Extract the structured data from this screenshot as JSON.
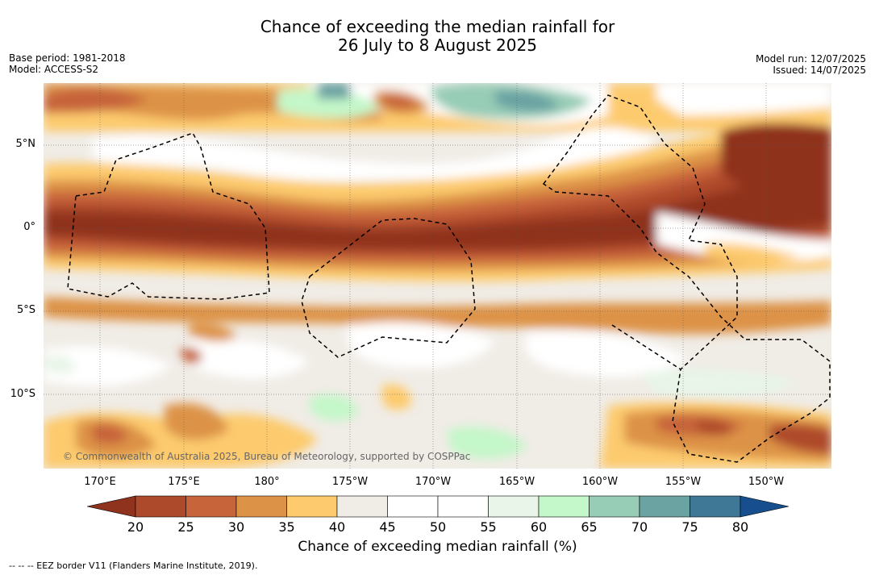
{
  "header": {
    "title_line1": "Chance of exceeding the median rainfall for",
    "title_line2": "26 July to 8 August 2025",
    "base_period": "Base period: 1981-2018",
    "model": "Model: ACCESS-S2",
    "model_run": "Model run: 12/07/2025",
    "issued": "Issued: 14/07/2025"
  },
  "map": {
    "lat_labels": [
      "5°N",
      "0°",
      "5°S",
      "10°S"
    ],
    "lon_labels": [
      "170°E",
      "175°E",
      "180°",
      "175°W",
      "170°W",
      "165°W",
      "160°W",
      "155°W",
      "150°W"
    ],
    "copyright": "© Commonwealth of Australia 2025, Bureau of Meteorology, supported by COSPPac"
  },
  "colorbar": {
    "ticks": [
      "20",
      "25",
      "30",
      "35",
      "40",
      "45",
      "50",
      "55",
      "60",
      "65",
      "70",
      "75",
      "80"
    ],
    "colors": [
      "#8f321e",
      "#ae4a2c",
      "#c7643a",
      "#dd9347",
      "#fdcb6e",
      "#f0ece6",
      "#ffffff",
      "#ffffff",
      "#e8f5e8",
      "#c4f7c9",
      "#97ccb6",
      "#6ba3a3",
      "#3f7897",
      "#174f8e"
    ],
    "label": "Chance of exceeding median rainfall (%)"
  },
  "legend": {
    "eez": "-- -- -- EEZ border V11 (Flanders Marine Institute, 2019)."
  }
}
